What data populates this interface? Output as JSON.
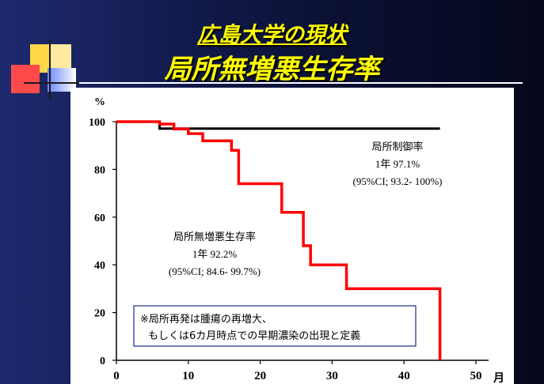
{
  "slide": {
    "title_line1": "広島大学の現状",
    "title_line2": "局所無増悪生存率"
  },
  "colors": {
    "background": "#0c1238",
    "title": "#ffff00",
    "lc_series": "#000000",
    "pfs_series": "#ff0000",
    "deco_yellow": "#ffd84a",
    "deco_red": "#ff4a4a",
    "deco_blue": "#4a6aff"
  },
  "chart_data": {
    "type": "line",
    "title": "",
    "xlabel": "月",
    "ylabel": "%",
    "xlim": [
      0,
      50
    ],
    "ylim": [
      0,
      100
    ],
    "x_ticks": [
      0,
      10,
      20,
      30,
      40,
      50
    ],
    "y_ticks": [
      0,
      20,
      40,
      60,
      80,
      100
    ],
    "grid": false,
    "series": [
      {
        "name": "局所制御率",
        "color": "#000000",
        "steps": [
          [
            0,
            100
          ],
          [
            6,
            100
          ],
          [
            6,
            97.1
          ],
          [
            45,
            97.1
          ]
        ]
      },
      {
        "name": "局所無増悪生存率",
        "color": "#ff0000",
        "steps": [
          [
            0,
            100
          ],
          [
            6,
            100
          ],
          [
            6,
            99
          ],
          [
            8,
            99
          ],
          [
            8,
            97
          ],
          [
            10,
            97
          ],
          [
            10,
            95
          ],
          [
            12,
            95
          ],
          [
            12,
            92
          ],
          [
            16,
            92
          ],
          [
            16,
            88
          ],
          [
            17,
            88
          ],
          [
            17,
            74
          ],
          [
            23,
            74
          ],
          [
            23,
            62
          ],
          [
            26,
            62
          ],
          [
            26,
            48
          ],
          [
            27,
            48
          ],
          [
            27,
            40
          ],
          [
            32,
            40
          ],
          [
            32,
            30
          ],
          [
            45,
            30
          ],
          [
            45,
            0
          ]
        ]
      }
    ],
    "annotations": {
      "local_control": {
        "name": "局所制御率",
        "line2": "1年 97.1%",
        "line3": "(95%CI; 93.2- 100%)"
      },
      "pfs": {
        "name": "局所無増悪生存率",
        "line2": "1年 92.2%",
        "line3": "(95%CI; 84.6- 99.7%)"
      },
      "note": {
        "line1": "※局所再発は腫瘍の再増大、",
        "line2": "もしくは6カ月時点での早期濃染の出現と定義"
      }
    }
  }
}
